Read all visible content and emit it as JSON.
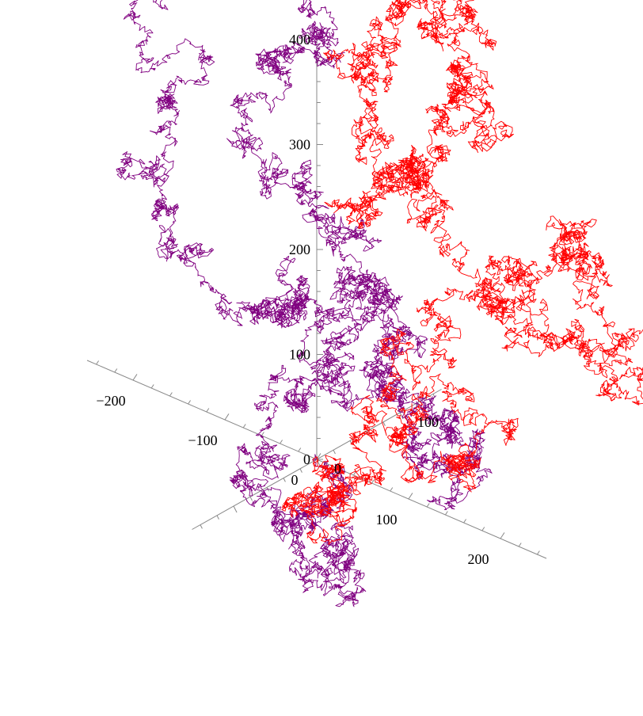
{
  "chart_data": {
    "type": "line3d",
    "title": "",
    "xlabel": "",
    "ylabel": "",
    "zlabel": "",
    "grid": false,
    "legend": "none",
    "axes": {
      "x": {
        "range": [
          -250,
          250
        ],
        "ticks": [
          -200,
          -100,
          0,
          100,
          200
        ],
        "labels": [
          "−200",
          "−100",
          "0",
          "100",
          "200"
        ]
      },
      "y": {
        "range": [
          -150,
          150
        ],
        "ticks": [
          0,
          100
        ],
        "labels": [
          "0",
          "100"
        ]
      },
      "z": {
        "range": [
          0,
          400
        ],
        "ticks": [
          0,
          100,
          200,
          300,
          400
        ],
        "labels": [
          "0",
          "100",
          "200",
          "300",
          "400"
        ]
      }
    },
    "series": [
      {
        "color": "#800080",
        "kind": "random-walk",
        "waypoints": [
          [
            0,
            0,
            0
          ],
          [
            -30,
            10,
            -60
          ],
          [
            -70,
            30,
            -100
          ],
          [
            -40,
            60,
            -130
          ],
          [
            10,
            40,
            -140
          ],
          [
            -20,
            0,
            -90
          ],
          [
            -60,
            -20,
            -40
          ],
          [
            -20,
            -30,
            20
          ],
          [
            10,
            -20,
            60
          ],
          [
            30,
            -10,
            110
          ],
          [
            50,
            0,
            150
          ],
          [
            20,
            20,
            170
          ],
          [
            -20,
            10,
            160
          ],
          [
            -50,
            30,
            120
          ],
          [
            -100,
            40,
            80
          ],
          [
            -160,
            60,
            60
          ],
          [
            -230,
            80,
            90
          ],
          [
            -280,
            90,
            140
          ],
          [
            -260,
            110,
            190
          ],
          [
            -300,
            110,
            260
          ],
          [
            -260,
            140,
            320
          ],
          [
            -200,
            150,
            360
          ],
          [
            -150,
            140,
            370
          ],
          [
            -110,
            120,
            330
          ],
          [
            -80,
            100,
            300
          ],
          [
            -130,
            100,
            270
          ],
          [
            -150,
            80,
            230
          ],
          [
            -90,
            60,
            210
          ],
          [
            -40,
            40,
            200
          ],
          [
            0,
            20,
            190
          ],
          [
            30,
            20,
            170
          ],
          [
            80,
            0,
            140
          ],
          [
            130,
            -10,
            110
          ],
          [
            170,
            -20,
            110
          ],
          [
            190,
            -20,
            80
          ],
          [
            150,
            -10,
            60
          ],
          [
            100,
            0,
            70
          ],
          [
            60,
            10,
            90
          ],
          [
            20,
            10,
            100
          ]
        ]
      },
      {
        "color": "#ff0000",
        "kind": "random-walk",
        "waypoints": [
          [
            0,
            0,
            0
          ],
          [
            20,
            -20,
            -20
          ],
          [
            50,
            -40,
            -40
          ],
          [
            70,
            -40,
            0
          ],
          [
            60,
            -20,
            40
          ],
          [
            90,
            0,
            60
          ],
          [
            140,
            20,
            40
          ],
          [
            160,
            20,
            80
          ],
          [
            120,
            0,
            110
          ],
          [
            80,
            0,
            130
          ],
          [
            110,
            20,
            160
          ],
          [
            150,
            40,
            180
          ],
          [
            190,
            40,
            200
          ],
          [
            230,
            40,
            180
          ],
          [
            270,
            40,
            170
          ],
          [
            300,
            50,
            210
          ],
          [
            260,
            60,
            240
          ],
          [
            220,
            60,
            270
          ],
          [
            210,
            60,
            240
          ],
          [
            180,
            60,
            200
          ],
          [
            120,
            40,
            210
          ],
          [
            90,
            40,
            250
          ],
          [
            70,
            40,
            280
          ],
          [
            20,
            40,
            300
          ],
          [
            -20,
            60,
            330
          ],
          [
            -20,
            90,
            370
          ],
          [
            0,
            120,
            380
          ],
          [
            -30,
            150,
            400
          ],
          [
            -10,
            170,
            370
          ],
          [
            30,
            150,
            360
          ],
          [
            50,
            120,
            330
          ],
          [
            90,
            100,
            340
          ],
          [
            110,
            80,
            310
          ],
          [
            90,
            60,
            300
          ],
          [
            60,
            40,
            270
          ],
          [
            40,
            30,
            250
          ],
          [
            30,
            20,
            230
          ]
        ]
      }
    ]
  }
}
